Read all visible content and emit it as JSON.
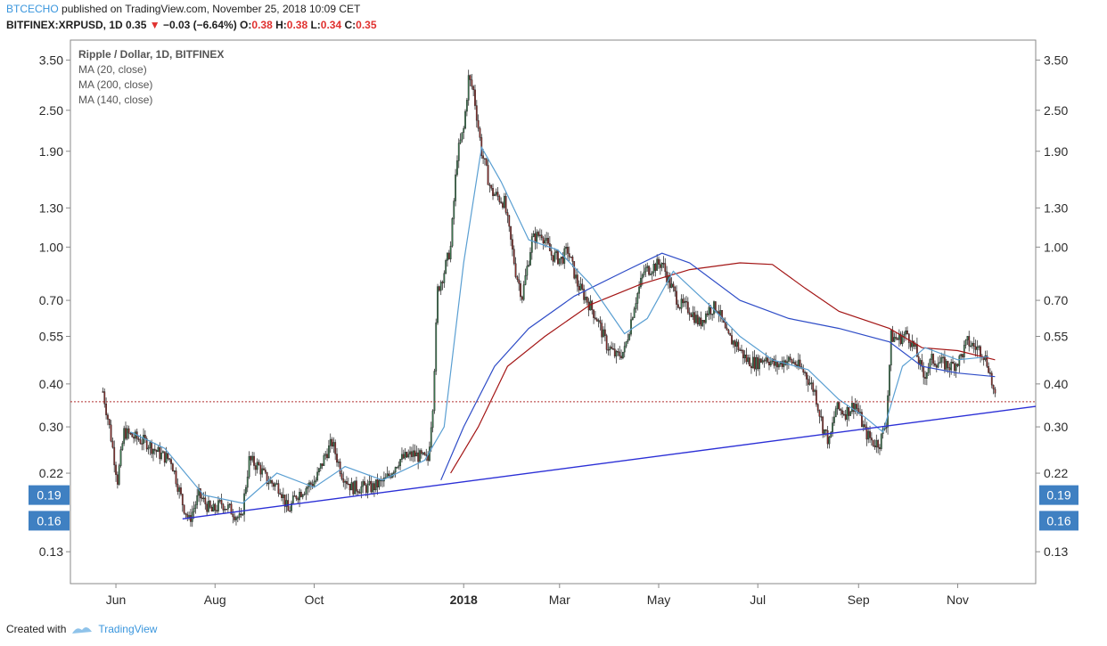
{
  "header": {
    "author": "BTCECHO",
    "published_text": "published on TradingView.com, November 25, 2018 10:09 CET",
    "symbol": "BITFINEX:XRPUSD, 1D",
    "last_price": "0.35",
    "change": "−0.03 (−6.64%)",
    "o_label": "O:",
    "o_value": "0.38",
    "h_label": "H:",
    "h_value": "0.38",
    "l_label": "L:",
    "l_value": "0.34",
    "c_label": "C:",
    "c_value": "0.35"
  },
  "footer": {
    "created_with": "Created with",
    "brand": "TradingView"
  },
  "chart_data": {
    "type": "line",
    "title": "Ripple / Dollar, 1D, BITFINEX",
    "legend": [
      "MA (20, close)",
      "MA (200, close)",
      "MA (140, close)"
    ],
    "y_scale": "log",
    "ylim": [
      0.105,
      4.0
    ],
    "y_ticks": [
      0.13,
      0.22,
      0.3,
      0.4,
      0.55,
      0.7,
      1.0,
      1.3,
      1.9,
      2.5,
      3.5
    ],
    "y_tick_labels": [
      "0.13",
      "0.22",
      "0.30",
      "0.40",
      "0.55",
      "0.70",
      "1.00",
      "1.30",
      "1.90",
      "2.50",
      "3.50"
    ],
    "x_ticks": [
      {
        "label": "Jun",
        "date": "2017-06-01",
        "bold": false
      },
      {
        "label": "Aug",
        "date": "2017-08-01",
        "bold": false
      },
      {
        "label": "Oct",
        "date": "2017-10-01",
        "bold": false
      },
      {
        "label": "2018",
        "date": "2018-01-01",
        "bold": true
      },
      {
        "label": "Mar",
        "date": "2018-03-01",
        "bold": false
      },
      {
        "label": "May",
        "date": "2018-05-01",
        "bold": false
      },
      {
        "label": "Jul",
        "date": "2018-07-01",
        "bold": false
      },
      {
        "label": "Sep",
        "date": "2018-09-01",
        "bold": false
      },
      {
        "label": "Nov",
        "date": "2018-11-01",
        "bold": false
      }
    ],
    "x_range": [
      "2017-05-04",
      "2018-12-19"
    ],
    "price_path": [
      [
        "2017-05-24",
        0.38
      ],
      [
        "2017-05-28",
        0.3
      ],
      [
        "2017-06-02",
        0.21
      ],
      [
        "2017-06-06",
        0.29
      ],
      [
        "2017-06-12",
        0.28
      ],
      [
        "2017-06-20",
        0.27
      ],
      [
        "2017-06-28",
        0.25
      ],
      [
        "2017-07-05",
        0.24
      ],
      [
        "2017-07-12",
        0.18
      ],
      [
        "2017-07-16",
        0.16
      ],
      [
        "2017-07-22",
        0.19
      ],
      [
        "2017-07-30",
        0.17
      ],
      [
        "2017-08-05",
        0.18
      ],
      [
        "2017-08-12",
        0.17
      ],
      [
        "2017-08-17",
        0.16
      ],
      [
        "2017-08-22",
        0.24
      ],
      [
        "2017-08-28",
        0.23
      ],
      [
        "2017-09-02",
        0.21
      ],
      [
        "2017-09-10",
        0.2
      ],
      [
        "2017-09-15",
        0.17
      ],
      [
        "2017-09-20",
        0.19
      ],
      [
        "2017-09-26",
        0.2
      ],
      [
        "2017-10-02",
        0.21
      ],
      [
        "2017-10-08",
        0.25
      ],
      [
        "2017-10-12",
        0.27
      ],
      [
        "2017-10-18",
        0.22
      ],
      [
        "2017-10-24",
        0.2
      ],
      [
        "2017-10-30",
        0.2
      ],
      [
        "2017-11-06",
        0.2
      ],
      [
        "2017-11-14",
        0.21
      ],
      [
        "2017-11-22",
        0.24
      ],
      [
        "2017-12-01",
        0.25
      ],
      [
        "2017-12-10",
        0.24
      ],
      [
        "2017-12-13",
        0.35
      ],
      [
        "2017-12-16",
        0.75
      ],
      [
        "2017-12-20",
        0.85
      ],
      [
        "2017-12-24",
        1.0
      ],
      [
        "2017-12-28",
        1.85
      ],
      [
        "2018-01-01",
        2.2
      ],
      [
        "2018-01-04",
        3.1
      ],
      [
        "2018-01-07",
        2.85
      ],
      [
        "2018-01-12",
        1.9
      ],
      [
        "2018-01-18",
        1.45
      ],
      [
        "2018-01-26",
        1.35
      ],
      [
        "2018-02-02",
        0.85
      ],
      [
        "2018-02-06",
        0.72
      ],
      [
        "2018-02-12",
        1.05
      ],
      [
        "2018-02-18",
        1.1
      ],
      [
        "2018-02-24",
        0.95
      ],
      [
        "2018-03-02",
        0.92
      ],
      [
        "2018-03-06",
        0.98
      ],
      [
        "2018-03-12",
        0.78
      ],
      [
        "2018-03-18",
        0.7
      ],
      [
        "2018-03-24",
        0.62
      ],
      [
        "2018-03-30",
        0.52
      ],
      [
        "2018-04-05",
        0.48
      ],
      [
        "2018-04-10",
        0.5
      ],
      [
        "2018-04-16",
        0.68
      ],
      [
        "2018-04-22",
        0.85
      ],
      [
        "2018-04-28",
        0.88
      ],
      [
        "2018-05-03",
        0.9
      ],
      [
        "2018-05-08",
        0.78
      ],
      [
        "2018-05-14",
        0.68
      ],
      [
        "2018-05-20",
        0.66
      ],
      [
        "2018-05-26",
        0.6
      ],
      [
        "2018-06-01",
        0.66
      ],
      [
        "2018-06-06",
        0.67
      ],
      [
        "2018-06-12",
        0.55
      ],
      [
        "2018-06-18",
        0.52
      ],
      [
        "2018-06-24",
        0.47
      ],
      [
        "2018-06-30",
        0.46
      ],
      [
        "2018-07-06",
        0.48
      ],
      [
        "2018-07-12",
        0.45
      ],
      [
        "2018-07-18",
        0.47
      ],
      [
        "2018-07-24",
        0.46
      ],
      [
        "2018-07-30",
        0.43
      ],
      [
        "2018-08-05",
        0.38
      ],
      [
        "2018-08-10",
        0.3
      ],
      [
        "2018-08-14",
        0.27
      ],
      [
        "2018-08-18",
        0.34
      ],
      [
        "2018-08-24",
        0.33
      ],
      [
        "2018-08-30",
        0.35
      ],
      [
        "2018-09-05",
        0.29
      ],
      [
        "2018-09-10",
        0.27
      ],
      [
        "2018-09-14",
        0.27
      ],
      [
        "2018-09-18",
        0.31
      ],
      [
        "2018-09-21",
        0.55
      ],
      [
        "2018-09-25",
        0.54
      ],
      [
        "2018-10-01",
        0.56
      ],
      [
        "2018-10-06",
        0.5
      ],
      [
        "2018-10-11",
        0.42
      ],
      [
        "2018-10-16",
        0.47
      ],
      [
        "2018-10-22",
        0.46
      ],
      [
        "2018-10-28",
        0.45
      ],
      [
        "2018-11-02",
        0.47
      ],
      [
        "2018-11-07",
        0.53
      ],
      [
        "2018-11-12",
        0.51
      ],
      [
        "2018-11-16",
        0.5
      ],
      [
        "2018-11-20",
        0.45
      ],
      [
        "2018-11-24",
        0.36
      ]
    ],
    "ma20": [
      [
        "2017-06-10",
        0.29
      ],
      [
        "2017-07-01",
        0.26
      ],
      [
        "2017-07-25",
        0.19
      ],
      [
        "2017-08-18",
        0.18
      ],
      [
        "2017-09-08",
        0.22
      ],
      [
        "2017-10-01",
        0.2
      ],
      [
        "2017-10-20",
        0.23
      ],
      [
        "2017-11-12",
        0.21
      ],
      [
        "2017-12-08",
        0.24
      ],
      [
        "2017-12-20",
        0.3
      ],
      [
        "2018-01-01",
        0.9
      ],
      [
        "2018-01-12",
        1.95
      ],
      [
        "2018-01-24",
        1.55
      ],
      [
        "2018-02-10",
        1.05
      ],
      [
        "2018-02-28",
        0.98
      ],
      [
        "2018-03-20",
        0.78
      ],
      [
        "2018-04-10",
        0.56
      ],
      [
        "2018-04-24",
        0.62
      ],
      [
        "2018-05-10",
        0.85
      ],
      [
        "2018-06-01",
        0.68
      ],
      [
        "2018-06-20",
        0.55
      ],
      [
        "2018-07-10",
        0.47
      ],
      [
        "2018-08-01",
        0.44
      ],
      [
        "2018-08-20",
        0.36
      ],
      [
        "2018-09-05",
        0.32
      ],
      [
        "2018-09-16",
        0.29
      ],
      [
        "2018-09-28",
        0.45
      ],
      [
        "2018-10-12",
        0.51
      ],
      [
        "2018-11-01",
        0.47
      ],
      [
        "2018-11-20",
        0.48
      ]
    ],
    "ma140": [
      [
        "2017-12-18",
        0.21
      ],
      [
        "2018-01-01",
        0.3
      ],
      [
        "2018-01-20",
        0.45
      ],
      [
        "2018-02-10",
        0.58
      ],
      [
        "2018-03-10",
        0.72
      ],
      [
        "2018-04-10",
        0.85
      ],
      [
        "2018-05-03",
        0.96
      ],
      [
        "2018-05-20",
        0.9
      ],
      [
        "2018-06-20",
        0.7
      ],
      [
        "2018-07-20",
        0.62
      ],
      [
        "2018-08-20",
        0.58
      ],
      [
        "2018-09-20",
        0.53
      ],
      [
        "2018-10-10",
        0.45
      ],
      [
        "2018-11-01",
        0.43
      ],
      [
        "2018-11-24",
        0.42
      ]
    ],
    "ma200": [
      [
        "2017-12-24",
        0.22
      ],
      [
        "2018-01-10",
        0.3
      ],
      [
        "2018-01-28",
        0.45
      ],
      [
        "2018-02-20",
        0.55
      ],
      [
        "2018-03-20",
        0.68
      ],
      [
        "2018-04-20",
        0.78
      ],
      [
        "2018-05-20",
        0.86
      ],
      [
        "2018-06-20",
        0.9
      ],
      [
        "2018-07-10",
        0.89
      ],
      [
        "2018-07-30",
        0.76
      ],
      [
        "2018-08-20",
        0.65
      ],
      [
        "2018-09-20",
        0.58
      ],
      [
        "2018-10-10",
        0.51
      ],
      [
        "2018-11-01",
        0.5
      ],
      [
        "2018-11-24",
        0.47
      ]
    ],
    "trendline": [
      [
        "2017-07-12",
        0.162
      ],
      [
        "2018-12-19",
        0.344
      ]
    ],
    "last_close_line": 0.355,
    "price_labels": [
      {
        "label": "0.19",
        "value": 0.19
      },
      {
        "label": "0.16",
        "value": 0.16
      }
    ],
    "colors": {
      "up": "#3d7d52",
      "down": "#8f2e2b",
      "ma20": "#5a9fd2",
      "ma140": "#2e4cc7",
      "ma200": "#a31515",
      "trendline": "#2b2fd6",
      "last_close": "#b03030",
      "price_label_bg": "#3f80c2",
      "axis": "#8a8a8a"
    }
  }
}
